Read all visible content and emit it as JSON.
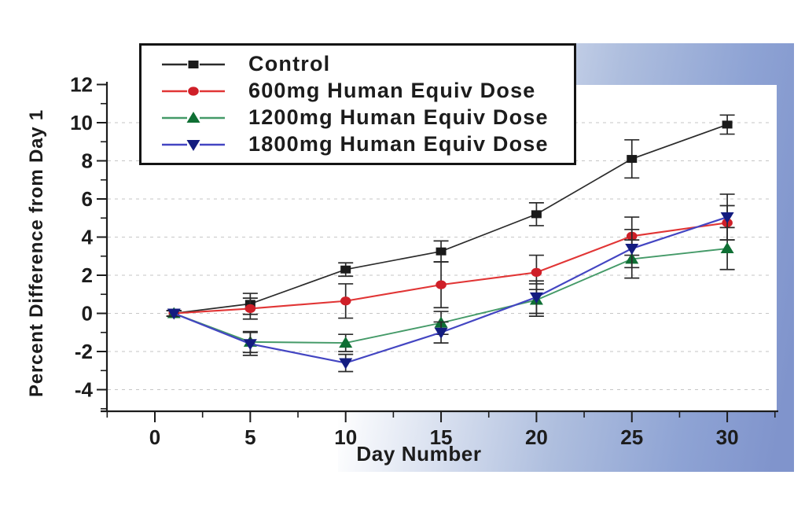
{
  "page": {
    "background_color": "#ffffff",
    "panel_gradient": [
      "#ffffff",
      "#aebede",
      "#8094cc"
    ]
  },
  "chart_data": {
    "type": "line",
    "title": "",
    "xlabel": "Day Number",
    "ylabel": "Percent Difference from Day 1",
    "x": [
      1,
      5,
      10,
      15,
      20,
      25,
      30
    ],
    "x_ticks": [
      0,
      5,
      10,
      15,
      20,
      25,
      30
    ],
    "x_minor_ticks": [
      -2.5,
      2.5,
      7.5,
      12.5,
      17.5,
      22.5,
      27.5,
      32.5
    ],
    "y_ticks": [
      12,
      10,
      8,
      6,
      4,
      2,
      0,
      -2,
      -4
    ],
    "y_minor_ticks": [
      11,
      9,
      7,
      5,
      3,
      1,
      -1,
      -3,
      -5
    ],
    "grid_values": [
      10,
      8,
      6,
      4,
      2,
      0,
      -2,
      -4
    ],
    "xlim": [
      -3,
      32.6
    ],
    "ylim": [
      -5.2,
      12
    ],
    "grid": "horizontal-dashed",
    "legend_position": "top-left",
    "error_bar_color": "#2a2a2a",
    "grid_color": "#bdbdbd",
    "axis_color": "#1c1c1c",
    "series": [
      {
        "name": "Control",
        "line_color": "#2b2b2b",
        "marker": "square",
        "marker_color": "#1a1a1a",
        "values": [
          0,
          0.5,
          2.3,
          3.25,
          5.2,
          8.1,
          9.9
        ],
        "errors": [
          0.15,
          0.55,
          0.35,
          0.55,
          0.6,
          1.0,
          0.5
        ]
      },
      {
        "name": "600mg Human Equiv Dose",
        "line_color": "#e13535",
        "marker": "circle",
        "marker_color": "#cf1f28",
        "values": [
          0,
          0.25,
          0.65,
          1.5,
          2.15,
          4.05,
          4.75
        ],
        "errors": [
          0.15,
          0.55,
          0.9,
          1.2,
          0.9,
          1.0,
          0.9
        ]
      },
      {
        "name": "1200mg Human Equiv Dose",
        "line_color": "#449a68",
        "marker": "triangle-up",
        "marker_color": "#0f6f34",
        "values": [
          0,
          -1.5,
          -1.55,
          -0.5,
          0.7,
          2.85,
          3.4
        ],
        "errors": [
          0.15,
          0.55,
          0.45,
          0.6,
          0.85,
          1.0,
          1.1
        ]
      },
      {
        "name": "1800mg Human Equiv Dose",
        "line_color": "#4345c2",
        "marker": "triangle-down",
        "marker_color": "#131c80",
        "values": [
          0,
          -1.6,
          -2.6,
          -1.0,
          0.85,
          3.4,
          5.05
        ],
        "errors": [
          0.15,
          0.6,
          0.45,
          0.55,
          0.85,
          1.0,
          1.2
        ]
      }
    ]
  }
}
